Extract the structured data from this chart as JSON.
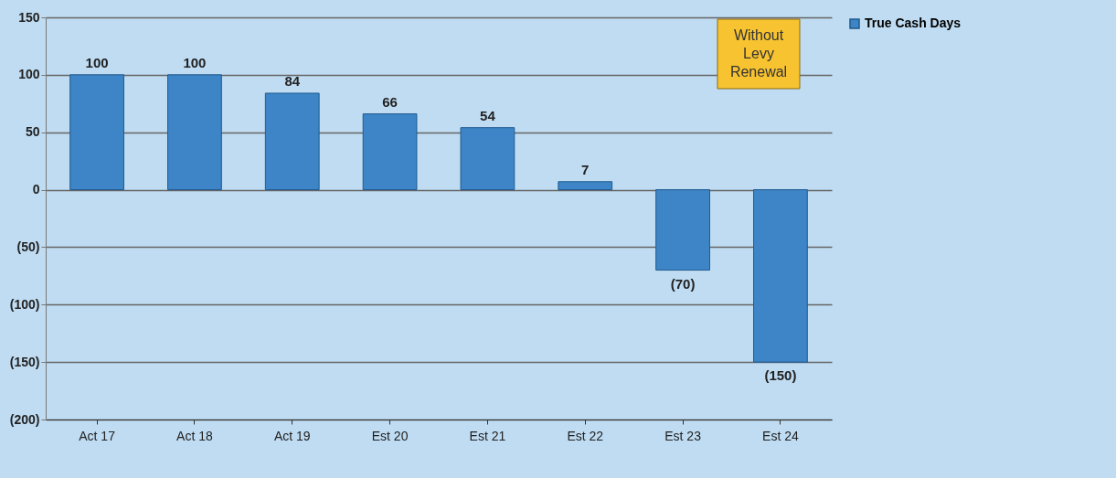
{
  "chart_data": {
    "type": "bar",
    "categories": [
      "Act 17",
      "Act 18",
      "Act 19",
      "Est 20",
      "Est 21",
      "Est 22",
      "Est 23",
      "Est 24"
    ],
    "series": [
      {
        "name": "True Cash Days",
        "color": "#3d85c6",
        "values": [
          100,
          100,
          84,
          66,
          54,
          7,
          -70,
          -150
        ]
      }
    ],
    "value_labels": [
      "100",
      "100",
      "84",
      "66",
      "54",
      "7",
      "(70)",
      "(150)"
    ],
    "ylim": [
      -200,
      150
    ],
    "yticks": [
      {
        "value": -200,
        "label": "(200)"
      },
      {
        "value": -150,
        "label": "(150)"
      },
      {
        "value": -100,
        "label": "(100)"
      },
      {
        "value": -50,
        "label": "(50)"
      },
      0,
      50,
      100,
      150
    ],
    "grid": "y",
    "legend": "right",
    "annotations": [
      "Without Levy Renewal"
    ]
  }
}
